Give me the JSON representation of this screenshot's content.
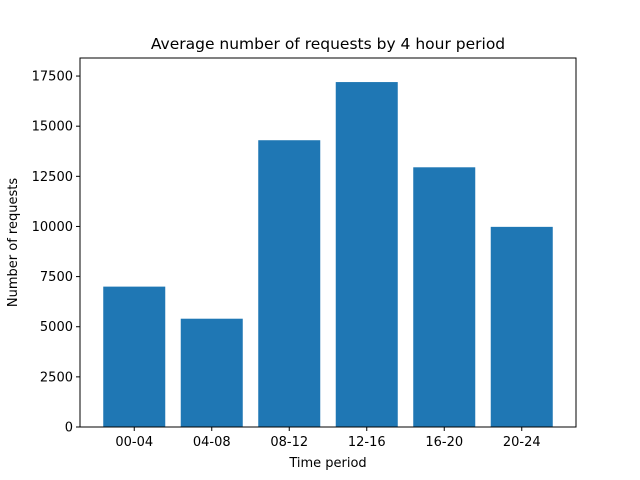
{
  "chart_data": {
    "type": "bar",
    "title": "Average number of requests by 4 hour period",
    "xlabel": "Time period",
    "ylabel": "Number of requests",
    "categories": [
      "00-04",
      "04-08",
      "08-12",
      "12-16",
      "16-20",
      "20-24"
    ],
    "values": [
      7000,
      5400,
      14300,
      17200,
      12950,
      9980
    ],
    "ylim": [
      0,
      18400
    ],
    "yticks": [
      0,
      2500,
      5000,
      7500,
      10000,
      12500,
      15000,
      17500
    ],
    "ytick_labels": [
      "0",
      "2500",
      "5000",
      "7500",
      "10000",
      "12500",
      "15000",
      "17500"
    ],
    "bar_color": "#1f77b4",
    "grid": false,
    "legend": "none"
  }
}
